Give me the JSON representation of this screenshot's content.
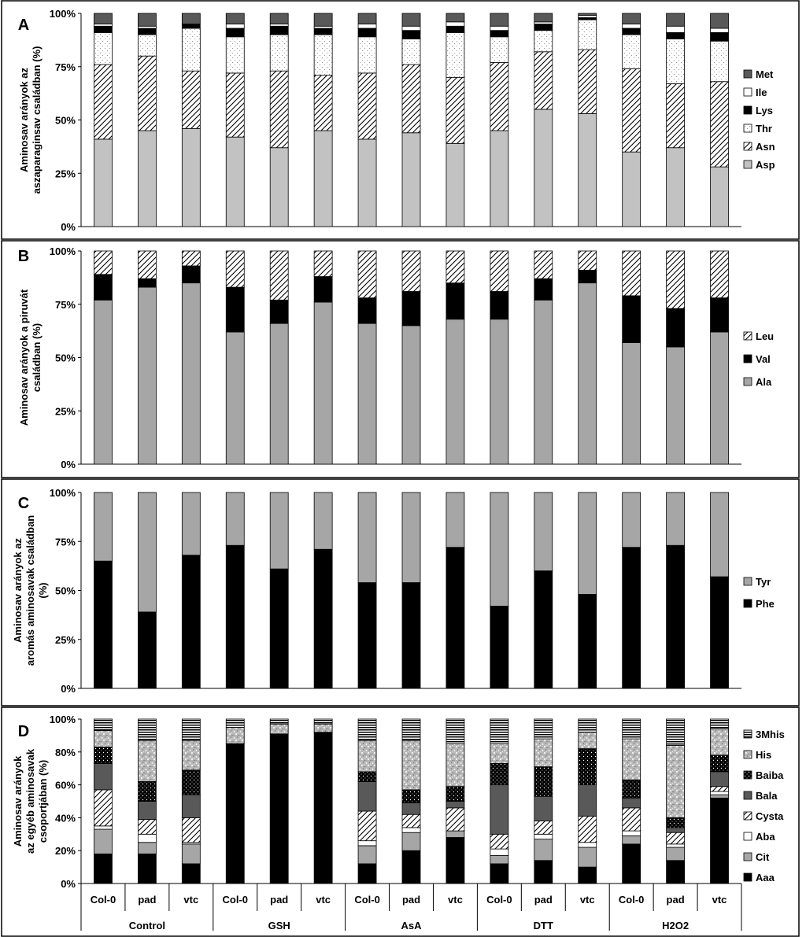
{
  "chart_data": [
    {
      "panel": "A",
      "type": "bar",
      "stacked": "percent",
      "ylabel": "Aminosav arányok az aszaparaginsav családban (%)",
      "ylabel_lines": [
        "Aminosav arányok az",
        "aszaparaginsav családban (%)"
      ],
      "ylim": [
        0,
        100
      ],
      "yticks": [
        "0%",
        "25%",
        "50%",
        "75%",
        "100%"
      ],
      "ytick_values": [
        0,
        25,
        50,
        75,
        100
      ],
      "legend_position": "right",
      "series": [
        {
          "name": "Asp",
          "fill": "light-gray",
          "values": [
            41,
            45,
            46,
            42,
            37,
            45,
            41,
            44,
            39,
            45,
            55,
            53,
            35,
            37,
            28
          ]
        },
        {
          "name": "Asn",
          "fill": "diagonal-hatch",
          "values": [
            35,
            35,
            27,
            30,
            36,
            26,
            31,
            32,
            31,
            32,
            27,
            30,
            39,
            30,
            40
          ]
        },
        {
          "name": "Thr",
          "fill": "dotted",
          "values": [
            15,
            10,
            20,
            17,
            17,
            19,
            17,
            12,
            21,
            12,
            10,
            14,
            16,
            21,
            19
          ]
        },
        {
          "name": "Lys",
          "fill": "black",
          "values": [
            3,
            3,
            2,
            4,
            4,
            3,
            4,
            4,
            3,
            3,
            3,
            1,
            3,
            3,
            4
          ]
        },
        {
          "name": "Ile",
          "fill": "white",
          "values": [
            1,
            1,
            0,
            2,
            1,
            1,
            2,
            2,
            2,
            2,
            1,
            1,
            2,
            3,
            2
          ]
        },
        {
          "name": "Met",
          "fill": "dark-gray",
          "values": [
            5,
            6,
            5,
            5,
            5,
            6,
            5,
            6,
            4,
            6,
            4,
            1,
            5,
            6,
            7
          ]
        }
      ]
    },
    {
      "panel": "B",
      "type": "bar",
      "stacked": "percent",
      "ylabel": "Aminosav arányok a piruvát családban (%)",
      "ylabel_lines": [
        "Aminosav arányok a piruvát",
        "családban (%)"
      ],
      "ylim": [
        0,
        100
      ],
      "yticks": [
        "0%",
        "25%",
        "50%",
        "75%",
        "100%"
      ],
      "ytick_values": [
        0,
        25,
        50,
        75,
        100
      ],
      "legend_position": "right",
      "series": [
        {
          "name": "Ala",
          "fill": "gray",
          "values": [
            77,
            83,
            85,
            62,
            66,
            76,
            66,
            65,
            68,
            68,
            77,
            85,
            57,
            55,
            62
          ]
        },
        {
          "name": "Val",
          "fill": "black",
          "values": [
            12,
            4,
            8,
            21,
            11,
            12,
            12,
            16,
            17,
            13,
            10,
            6,
            22,
            18,
            16
          ]
        },
        {
          "name": "Leu",
          "fill": "diagonal-hatch",
          "values": [
            11,
            13,
            7,
            17,
            23,
            12,
            22,
            19,
            15,
            19,
            13,
            9,
            21,
            27,
            22
          ]
        }
      ]
    },
    {
      "panel": "C",
      "type": "bar",
      "stacked": "percent",
      "ylabel": "Aminosav arányok az aromás aminosavak családban (%)",
      "ylabel_lines": [
        "Aminosav arányok az",
        "aromás aminosavak családban",
        "(%)"
      ],
      "ylim": [
        0,
        100
      ],
      "yticks": [
        "0%",
        "25%",
        "50%",
        "75%",
        "100%"
      ],
      "ytick_values": [
        0,
        25,
        50,
        75,
        100
      ],
      "legend_position": "right",
      "series": [
        {
          "name": "Phe",
          "fill": "black",
          "values": [
            65,
            39,
            68,
            73,
            61,
            71,
            54,
            54,
            72,
            42,
            60,
            48,
            72,
            73,
            57
          ]
        },
        {
          "name": "Tyr",
          "fill": "gray",
          "values": [
            35,
            61,
            32,
            27,
            39,
            29,
            46,
            46,
            28,
            58,
            40,
            52,
            28,
            27,
            43
          ]
        }
      ]
    },
    {
      "panel": "D",
      "type": "bar",
      "stacked": "percent",
      "ylabel": "Aminosav arányok az egyéb aminosavak csoportjában (%)",
      "ylabel_lines": [
        "Aminosav arányok",
        "az egyéb aminosavak",
        "csoportjában (%)"
      ],
      "ylim": [
        0,
        100
      ],
      "yticks": [
        "0%",
        "20%",
        "40%",
        "60%",
        "80%",
        "100%"
      ],
      "ytick_values": [
        0,
        20,
        40,
        60,
        80,
        100
      ],
      "legend_position": "right",
      "categories": [
        "Col-0",
        "pad",
        "vtc",
        "Col-0",
        "pad",
        "vtc",
        "Col-0",
        "pad",
        "vtc",
        "Col-0",
        "pad",
        "vtc",
        "Col-0",
        "pad",
        "vtc"
      ],
      "groups": [
        "Control",
        "GSH",
        "AsA",
        "DTT",
        "H2O2"
      ],
      "series": [
        {
          "name": "Aaa",
          "fill": "black",
          "values": [
            18,
            18,
            12,
            85,
            91,
            92,
            12,
            20,
            28,
            12,
            14,
            10,
            24,
            14,
            52
          ]
        },
        {
          "name": "Cit",
          "fill": "gray",
          "values": [
            15,
            7,
            12,
            0,
            0,
            0,
            11,
            11,
            4,
            5,
            13,
            12,
            5,
            8,
            2
          ]
        },
        {
          "name": "Aba",
          "fill": "white",
          "values": [
            2,
            5,
            1,
            0,
            0,
            0,
            3,
            3,
            0,
            4,
            3,
            3,
            3,
            2,
            2
          ]
        },
        {
          "name": "Cysta",
          "fill": "diagonal-hatch",
          "values": [
            22,
            9,
            15,
            0,
            0,
            0,
            18,
            8,
            14,
            9,
            8,
            16,
            14,
            7,
            3
          ]
        },
        {
          "name": "Bala",
          "fill": "dark-gray",
          "values": [
            16,
            11,
            14,
            0,
            0,
            0,
            18,
            7,
            4,
            30,
            15,
            19,
            6,
            3,
            9
          ]
        },
        {
          "name": "Baiba",
          "fill": "black-dots",
          "values": [
            10,
            12,
            15,
            0,
            0,
            0,
            6,
            8,
            9,
            13,
            18,
            22,
            11,
            6,
            10
          ]
        },
        {
          "name": "His",
          "fill": "speckled",
          "values": [
            10,
            25,
            18,
            10,
            6,
            5,
            19,
            30,
            26,
            12,
            17,
            10,
            25,
            44,
            16
          ]
        },
        {
          "name": "3Mhis",
          "fill": "horizontal-stripes",
          "values": [
            7,
            13,
            13,
            5,
            3,
            3,
            13,
            13,
            15,
            15,
            12,
            8,
            12,
            16,
            6
          ]
        }
      ]
    }
  ]
}
